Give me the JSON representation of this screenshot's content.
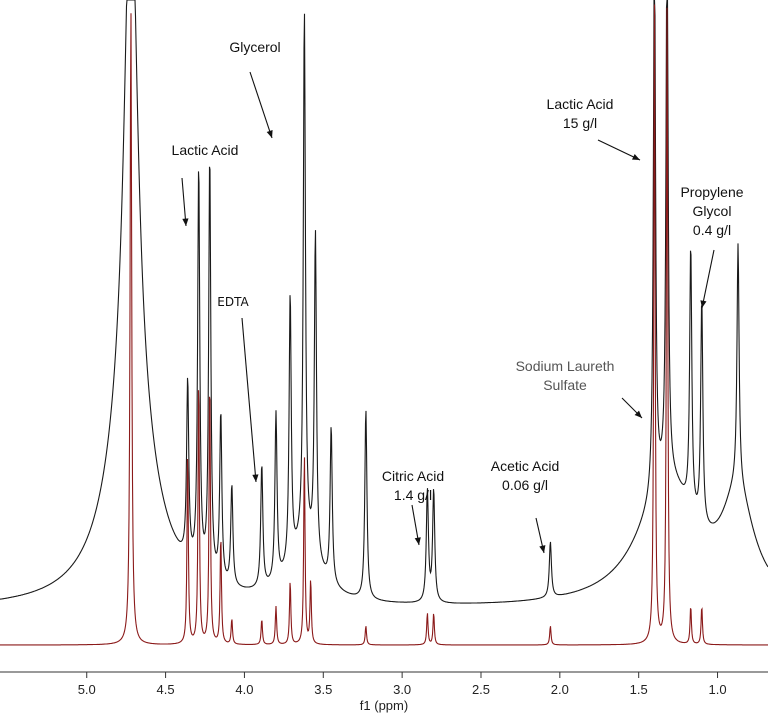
{
  "chart_data": {
    "type": "line",
    "xlabel": "f1 (ppm)",
    "x_reversed": true,
    "xlim": [
      5.55,
      0.68
    ],
    "x_ticks": [
      5.0,
      4.5,
      4.0,
      3.5,
      3.0,
      2.5,
      2.0,
      1.5,
      1.0
    ],
    "x_tick_labels": [
      "5.0",
      "4.5",
      "4.0",
      "3.5",
      "3.0",
      "2.5",
      "2.0",
      "1.5",
      "1.0"
    ],
    "y_axis_shown": false,
    "grid": false,
    "colors": {
      "upper_trace": "#1a1a1a",
      "lower_trace": "#8b1a1a",
      "axis": "#333333"
    },
    "annotations": [
      {
        "lines": [
          "Glycerol"
        ],
        "ppm": 3.68
      },
      {
        "lines": [
          "Lactic Acid"
        ],
        "ppm": 4.32
      },
      {
        "lines": [
          "EDTA"
        ],
        "ppm": 3.89
      },
      {
        "lines": [
          "Citric Acid",
          "1.4 g/l"
        ],
        "ppm": 2.82
      },
      {
        "lines": [
          "Acetic Acid",
          "0.06 g/l"
        ],
        "ppm": 2.06
      },
      {
        "lines": [
          "Lactic Acid",
          "15 g/l"
        ],
        "ppm": 1.41
      },
      {
        "lines": [
          "Propylene",
          "Glycol",
          "0.4 g/l"
        ],
        "ppm": 1.1
      },
      {
        "lines": [
          "Sodium Laureth",
          "Sulfate"
        ],
        "ppm": 1.47
      }
    ],
    "series": [
      {
        "description": "upper trace",
        "peaks": [
          {
            "ppm": 4.72,
            "height": 1.0
          },
          {
            "ppm": 4.36,
            "height": 0.32
          },
          {
            "ppm": 4.29,
            "height": 0.72
          },
          {
            "ppm": 4.22,
            "height": 0.75
          },
          {
            "ppm": 4.15,
            "height": 0.3
          },
          {
            "ppm": 4.08,
            "height": 0.18
          },
          {
            "ppm": 3.89,
            "height": 0.22
          },
          {
            "ppm": 3.8,
            "height": 0.3
          },
          {
            "ppm": 3.71,
            "height": 0.48
          },
          {
            "ppm": 3.62,
            "height": 0.95
          },
          {
            "ppm": 3.55,
            "height": 0.58
          },
          {
            "ppm": 3.45,
            "height": 0.28
          },
          {
            "ppm": 3.23,
            "height": 0.34
          },
          {
            "ppm": 2.84,
            "height": 0.2
          },
          {
            "ppm": 2.8,
            "height": 0.2
          },
          {
            "ppm": 2.06,
            "height": 0.1
          },
          {
            "ppm": 1.4,
            "height": 1.0
          },
          {
            "ppm": 1.32,
            "height": 1.0
          },
          {
            "ppm": 1.17,
            "height": 0.47
          },
          {
            "ppm": 1.1,
            "height": 0.4
          },
          {
            "ppm": 0.87,
            "height": 0.43
          }
        ]
      },
      {
        "description": "lower trace",
        "peaks": [
          {
            "ppm": 4.72,
            "height": 1.0
          },
          {
            "ppm": 4.36,
            "height": 0.3
          },
          {
            "ppm": 4.29,
            "height": 0.42
          },
          {
            "ppm": 4.22,
            "height": 0.42
          },
          {
            "ppm": 4.15,
            "height": 0.17
          },
          {
            "ppm": 4.08,
            "height": 0.04
          },
          {
            "ppm": 3.89,
            "height": 0.04
          },
          {
            "ppm": 3.8,
            "height": 0.06
          },
          {
            "ppm": 3.71,
            "height": 0.1
          },
          {
            "ppm": 3.62,
            "height": 0.3
          },
          {
            "ppm": 3.58,
            "height": 0.1
          },
          {
            "ppm": 3.23,
            "height": 0.03
          },
          {
            "ppm": 2.84,
            "height": 0.05
          },
          {
            "ppm": 2.8,
            "height": 0.05
          },
          {
            "ppm": 2.06,
            "height": 0.03
          },
          {
            "ppm": 1.4,
            "height": 1.0
          },
          {
            "ppm": 1.32,
            "height": 1.0
          },
          {
            "ppm": 1.17,
            "height": 0.06
          },
          {
            "ppm": 1.1,
            "height": 0.06
          }
        ]
      }
    ]
  }
}
